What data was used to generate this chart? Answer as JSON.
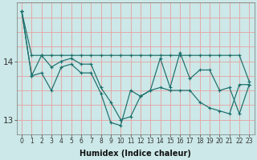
{
  "xlabel": "Humidex (Indice chaleur)",
  "background_color": "#cce8e8",
  "grid_color_major": "#e8a0a0",
  "grid_color_minor": "#e8c8c8",
  "line_color": "#1a6e6a",
  "x_values": [
    0,
    1,
    2,
    3,
    4,
    5,
    6,
    7,
    8,
    9,
    10,
    11,
    12,
    13,
    14,
    15,
    16,
    17,
    18,
    19,
    20,
    21,
    22,
    23
  ],
  "series": [
    [
      14.85,
      13.75,
      14.1,
      13.9,
      14.0,
      14.05,
      13.95,
      13.95,
      13.55,
      13.3,
      13.0,
      13.05,
      13.4,
      13.5,
      14.05,
      13.55,
      14.15,
      13.7,
      13.85,
      13.85,
      13.5,
      13.55,
      13.1,
      13.6
    ],
    [
      14.85,
      14.1,
      14.1,
      14.1,
      14.1,
      14.1,
      14.1,
      14.1,
      14.1,
      14.1,
      14.1,
      14.1,
      14.1,
      14.1,
      14.1,
      14.1,
      14.1,
      14.1,
      14.1,
      14.1,
      14.1,
      14.1,
      14.1,
      13.65
    ],
    [
      14.85,
      13.75,
      13.8,
      13.5,
      13.9,
      13.95,
      13.8,
      13.8,
      13.45,
      12.95,
      12.9,
      13.5,
      13.4,
      13.5,
      13.55,
      13.5,
      13.5,
      13.5,
      13.3,
      13.2,
      13.15,
      13.1,
      13.6,
      13.6
    ]
  ],
  "ylim": [
    12.75,
    15.0
  ],
  "yticks": [
    13,
    14
  ],
  "xlim": [
    -0.5,
    23.5
  ],
  "xtick_labels": [
    "0",
    "1",
    "2",
    "3",
    "4",
    "5",
    "6",
    "7",
    "8",
    "9",
    "10",
    "11",
    "12",
    "13",
    "14",
    "15",
    "16",
    "17",
    "18",
    "19",
    "20",
    "21",
    "22",
    "23"
  ],
  "figsize": [
    3.2,
    2.0
  ],
  "dpi": 100
}
